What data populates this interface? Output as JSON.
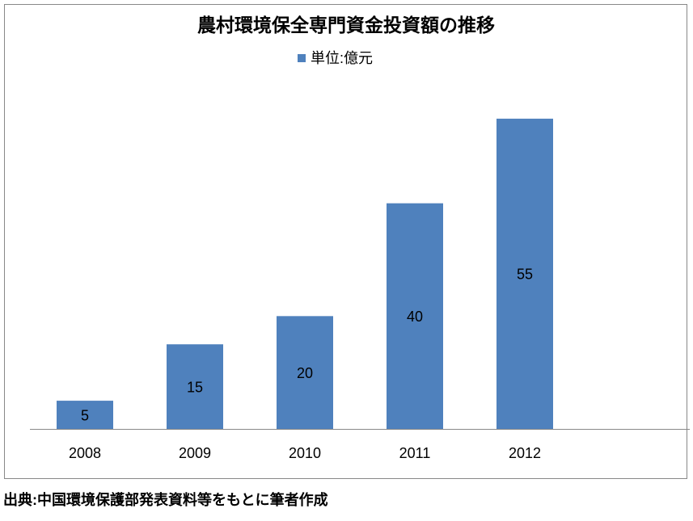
{
  "chart_data": {
    "type": "bar",
    "title": "農村環境保全専門資金投資額の推移",
    "legend": "単位:億元",
    "categories": [
      "2008",
      "2009",
      "2010",
      "2011",
      "2012",
      null
    ],
    "values": [
      5,
      15,
      20,
      40,
      55,
      null
    ],
    "color": "#4f81bd",
    "ylim": [
      0,
      60
    ],
    "data_labels": true
  },
  "source": "出典:中国環境保護部発表資料等をもとに筆者作成"
}
